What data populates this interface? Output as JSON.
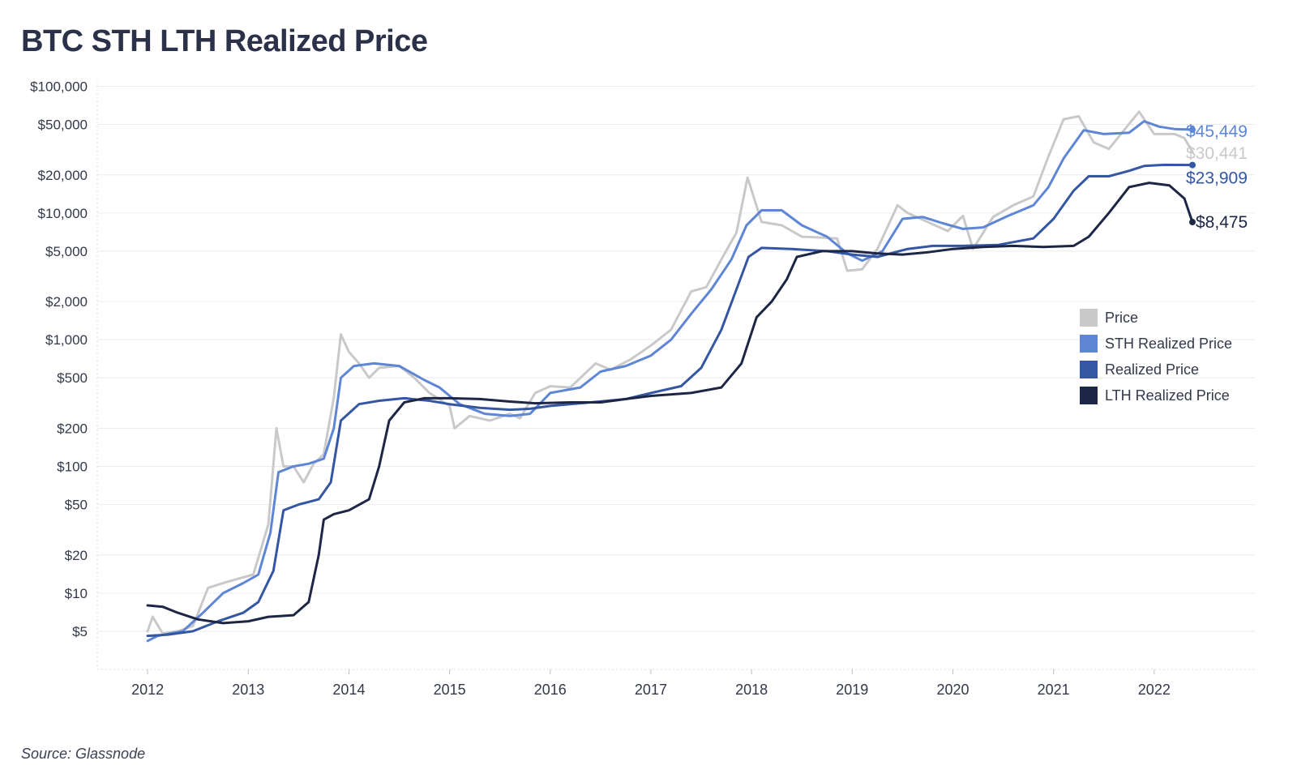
{
  "title": "BTC STH LTH Realized Price",
  "source": "Source: Glassnode",
  "chart_data": {
    "type": "line",
    "yscale": "log",
    "ylim": [
      2.5,
      110000
    ],
    "xlim": [
      2011.5,
      2023.0
    ],
    "yticks": [
      {
        "value": 100000,
        "label": "$100,000"
      },
      {
        "value": 50000,
        "label": "$50,000"
      },
      {
        "value": 20000,
        "label": "$20,000"
      },
      {
        "value": 10000,
        "label": "$10,000"
      },
      {
        "value": 5000,
        "label": "$5,000"
      },
      {
        "value": 2000,
        "label": "$2,000"
      },
      {
        "value": 1000,
        "label": "$1,000"
      },
      {
        "value": 500,
        "label": "$500"
      },
      {
        "value": 200,
        "label": "$200"
      },
      {
        "value": 100,
        "label": "$100"
      },
      {
        "value": 50,
        "label": "$50"
      },
      {
        "value": 20,
        "label": "$20"
      },
      {
        "value": 10,
        "label": "$10"
      },
      {
        "value": 5,
        "label": "$5"
      }
    ],
    "xticks": [
      {
        "value": 2012,
        "label": "2012"
      },
      {
        "value": 2013,
        "label": "2013"
      },
      {
        "value": 2014,
        "label": "2014"
      },
      {
        "value": 2015,
        "label": "2015"
      },
      {
        "value": 2016,
        "label": "2016"
      },
      {
        "value": 2017,
        "label": "2017"
      },
      {
        "value": 2018,
        "label": "2018"
      },
      {
        "value": 2019,
        "label": "2019"
      },
      {
        "value": 2020,
        "label": "2020"
      },
      {
        "value": 2021,
        "label": "2021"
      },
      {
        "value": 2022,
        "label": "2022"
      }
    ],
    "legend_position": "right",
    "series": [
      {
        "name": "Price",
        "color": "#c9c9c9",
        "end_label": "$30,441",
        "points": [
          [
            2012.0,
            5
          ],
          [
            2012.05,
            6.5
          ],
          [
            2012.15,
            4.8
          ],
          [
            2012.3,
            5
          ],
          [
            2012.45,
            5.5
          ],
          [
            2012.6,
            11
          ],
          [
            2012.75,
            12
          ],
          [
            2012.9,
            13
          ],
          [
            2013.05,
            14
          ],
          [
            2013.2,
            35
          ],
          [
            2013.28,
            200
          ],
          [
            2013.35,
            100
          ],
          [
            2013.45,
            100
          ],
          [
            2013.55,
            75
          ],
          [
            2013.65,
            105
          ],
          [
            2013.75,
            125
          ],
          [
            2013.85,
            350
          ],
          [
            2013.92,
            1100
          ],
          [
            2014.0,
            800
          ],
          [
            2014.1,
            650
          ],
          [
            2014.2,
            500
          ],
          [
            2014.3,
            600
          ],
          [
            2014.5,
            620
          ],
          [
            2014.65,
            500
          ],
          [
            2014.8,
            380
          ],
          [
            2015.0,
            300
          ],
          [
            2015.05,
            200
          ],
          [
            2015.2,
            250
          ],
          [
            2015.4,
            230
          ],
          [
            2015.6,
            260
          ],
          [
            2015.7,
            240
          ],
          [
            2015.85,
            380
          ],
          [
            2016.0,
            430
          ],
          [
            2016.2,
            420
          ],
          [
            2016.45,
            650
          ],
          [
            2016.6,
            580
          ],
          [
            2016.8,
            700
          ],
          [
            2017.0,
            900
          ],
          [
            2017.2,
            1200
          ],
          [
            2017.4,
            2400
          ],
          [
            2017.55,
            2600
          ],
          [
            2017.7,
            4300
          ],
          [
            2017.85,
            7000
          ],
          [
            2017.96,
            19000
          ],
          [
            2018.1,
            8500
          ],
          [
            2018.3,
            8000
          ],
          [
            2018.5,
            6500
          ],
          [
            2018.7,
            6400
          ],
          [
            2018.85,
            6300
          ],
          [
            2018.95,
            3500
          ],
          [
            2019.1,
            3600
          ],
          [
            2019.25,
            5200
          ],
          [
            2019.45,
            11500
          ],
          [
            2019.55,
            10000
          ],
          [
            2019.75,
            8500
          ],
          [
            2019.95,
            7200
          ],
          [
            2020.1,
            9500
          ],
          [
            2020.2,
            5200
          ],
          [
            2020.4,
            9300
          ],
          [
            2020.6,
            11500
          ],
          [
            2020.8,
            13500
          ],
          [
            2020.95,
            28000
          ],
          [
            2021.1,
            55000
          ],
          [
            2021.25,
            58000
          ],
          [
            2021.4,
            36000
          ],
          [
            2021.55,
            32000
          ],
          [
            2021.7,
            45000
          ],
          [
            2021.85,
            63000
          ],
          [
            2022.0,
            42000
          ],
          [
            2022.2,
            42000
          ],
          [
            2022.3,
            39000
          ],
          [
            2022.38,
            30441
          ]
        ]
      },
      {
        "name": "STH Realized Price",
        "color": "#5e86d5",
        "end_label": "$45,449",
        "points": [
          [
            2012.0,
            4.2
          ],
          [
            2012.1,
            4.6
          ],
          [
            2012.35,
            5
          ],
          [
            2012.55,
            7
          ],
          [
            2012.75,
            10
          ],
          [
            2012.95,
            12
          ],
          [
            2013.1,
            14
          ],
          [
            2013.22,
            30
          ],
          [
            2013.3,
            90
          ],
          [
            2013.45,
            100
          ],
          [
            2013.6,
            105
          ],
          [
            2013.75,
            115
          ],
          [
            2013.85,
            200
          ],
          [
            2013.92,
            500
          ],
          [
            2014.05,
            620
          ],
          [
            2014.25,
            650
          ],
          [
            2014.5,
            620
          ],
          [
            2014.75,
            480
          ],
          [
            2014.9,
            420
          ],
          [
            2015.1,
            310
          ],
          [
            2015.35,
            260
          ],
          [
            2015.6,
            250
          ],
          [
            2015.8,
            260
          ],
          [
            2016.0,
            380
          ],
          [
            2016.3,
            420
          ],
          [
            2016.5,
            560
          ],
          [
            2016.75,
            620
          ],
          [
            2017.0,
            750
          ],
          [
            2017.2,
            1000
          ],
          [
            2017.4,
            1600
          ],
          [
            2017.6,
            2500
          ],
          [
            2017.8,
            4300
          ],
          [
            2017.95,
            8000
          ],
          [
            2018.1,
            10500
          ],
          [
            2018.3,
            10500
          ],
          [
            2018.5,
            8000
          ],
          [
            2018.75,
            6500
          ],
          [
            2018.95,
            4800
          ],
          [
            2019.1,
            4200
          ],
          [
            2019.3,
            5000
          ],
          [
            2019.5,
            9000
          ],
          [
            2019.7,
            9300
          ],
          [
            2019.9,
            8300
          ],
          [
            2020.1,
            7500
          ],
          [
            2020.3,
            7700
          ],
          [
            2020.55,
            9500
          ],
          [
            2020.8,
            11500
          ],
          [
            2020.95,
            16000
          ],
          [
            2021.1,
            27000
          ],
          [
            2021.3,
            45000
          ],
          [
            2021.5,
            42000
          ],
          [
            2021.75,
            43000
          ],
          [
            2021.9,
            53000
          ],
          [
            2022.05,
            48000
          ],
          [
            2022.2,
            46000
          ],
          [
            2022.38,
            45449
          ]
        ]
      },
      {
        "name": "Realized Price",
        "color": "#3456a3",
        "end_label": "$23,909",
        "points": [
          [
            2012.0,
            4.6
          ],
          [
            2012.2,
            4.7
          ],
          [
            2012.45,
            5
          ],
          [
            2012.7,
            6
          ],
          [
            2012.95,
            7
          ],
          [
            2013.1,
            8.5
          ],
          [
            2013.25,
            15
          ],
          [
            2013.35,
            45
          ],
          [
            2013.5,
            50
          ],
          [
            2013.7,
            55
          ],
          [
            2013.82,
            75
          ],
          [
            2013.92,
            230
          ],
          [
            2014.1,
            310
          ],
          [
            2014.3,
            330
          ],
          [
            2014.55,
            345
          ],
          [
            2014.8,
            330
          ],
          [
            2015.0,
            310
          ],
          [
            2015.3,
            290
          ],
          [
            2015.6,
            280
          ],
          [
            2015.8,
            285
          ],
          [
            2016.0,
            300
          ],
          [
            2016.4,
            320
          ],
          [
            2016.75,
            340
          ],
          [
            2017.0,
            380
          ],
          [
            2017.3,
            430
          ],
          [
            2017.5,
            600
          ],
          [
            2017.7,
            1200
          ],
          [
            2017.85,
            2500
          ],
          [
            2017.97,
            4500
          ],
          [
            2018.1,
            5300
          ],
          [
            2018.4,
            5200
          ],
          [
            2018.75,
            5000
          ],
          [
            2019.0,
            4700
          ],
          [
            2019.25,
            4500
          ],
          [
            2019.55,
            5200
          ],
          [
            2019.8,
            5500
          ],
          [
            2020.1,
            5500
          ],
          [
            2020.45,
            5600
          ],
          [
            2020.8,
            6300
          ],
          [
            2021.0,
            9000
          ],
          [
            2021.2,
            15000
          ],
          [
            2021.35,
            19500
          ],
          [
            2021.55,
            19500
          ],
          [
            2021.75,
            21500
          ],
          [
            2021.9,
            23500
          ],
          [
            2022.1,
            24000
          ],
          [
            2022.38,
            23909
          ]
        ]
      },
      {
        "name": "LTH Realized Price",
        "color": "#1d2645",
        "end_label": "$8,475",
        "points": [
          [
            2012.0,
            8
          ],
          [
            2012.15,
            7.8
          ],
          [
            2012.3,
            7
          ],
          [
            2012.5,
            6.2
          ],
          [
            2012.75,
            5.8
          ],
          [
            2013.0,
            6
          ],
          [
            2013.2,
            6.5
          ],
          [
            2013.45,
            6.7
          ],
          [
            2013.6,
            8.5
          ],
          [
            2013.7,
            20
          ],
          [
            2013.75,
            38
          ],
          [
            2013.85,
            42
          ],
          [
            2014.0,
            45
          ],
          [
            2014.2,
            55
          ],
          [
            2014.3,
            100
          ],
          [
            2014.4,
            230
          ],
          [
            2014.55,
            320
          ],
          [
            2014.75,
            345
          ],
          [
            2015.0,
            345
          ],
          [
            2015.3,
            340
          ],
          [
            2015.6,
            325
          ],
          [
            2015.85,
            315
          ],
          [
            2016.2,
            320
          ],
          [
            2016.5,
            320
          ],
          [
            2016.75,
            340
          ],
          [
            2017.0,
            360
          ],
          [
            2017.4,
            380
          ],
          [
            2017.7,
            420
          ],
          [
            2017.9,
            650
          ],
          [
            2018.05,
            1500
          ],
          [
            2018.2,
            2000
          ],
          [
            2018.35,
            3000
          ],
          [
            2018.45,
            4500
          ],
          [
            2018.7,
            5000
          ],
          [
            2019.0,
            5000
          ],
          [
            2019.25,
            4800
          ],
          [
            2019.5,
            4700
          ],
          [
            2019.75,
            4900
          ],
          [
            2020.0,
            5200
          ],
          [
            2020.3,
            5400
          ],
          [
            2020.6,
            5500
          ],
          [
            2020.9,
            5400
          ],
          [
            2021.2,
            5500
          ],
          [
            2021.35,
            6500
          ],
          [
            2021.55,
            10000
          ],
          [
            2021.75,
            16000
          ],
          [
            2021.95,
            17300
          ],
          [
            2022.15,
            16500
          ],
          [
            2022.3,
            13000
          ],
          [
            2022.38,
            8475
          ]
        ]
      }
    ]
  }
}
